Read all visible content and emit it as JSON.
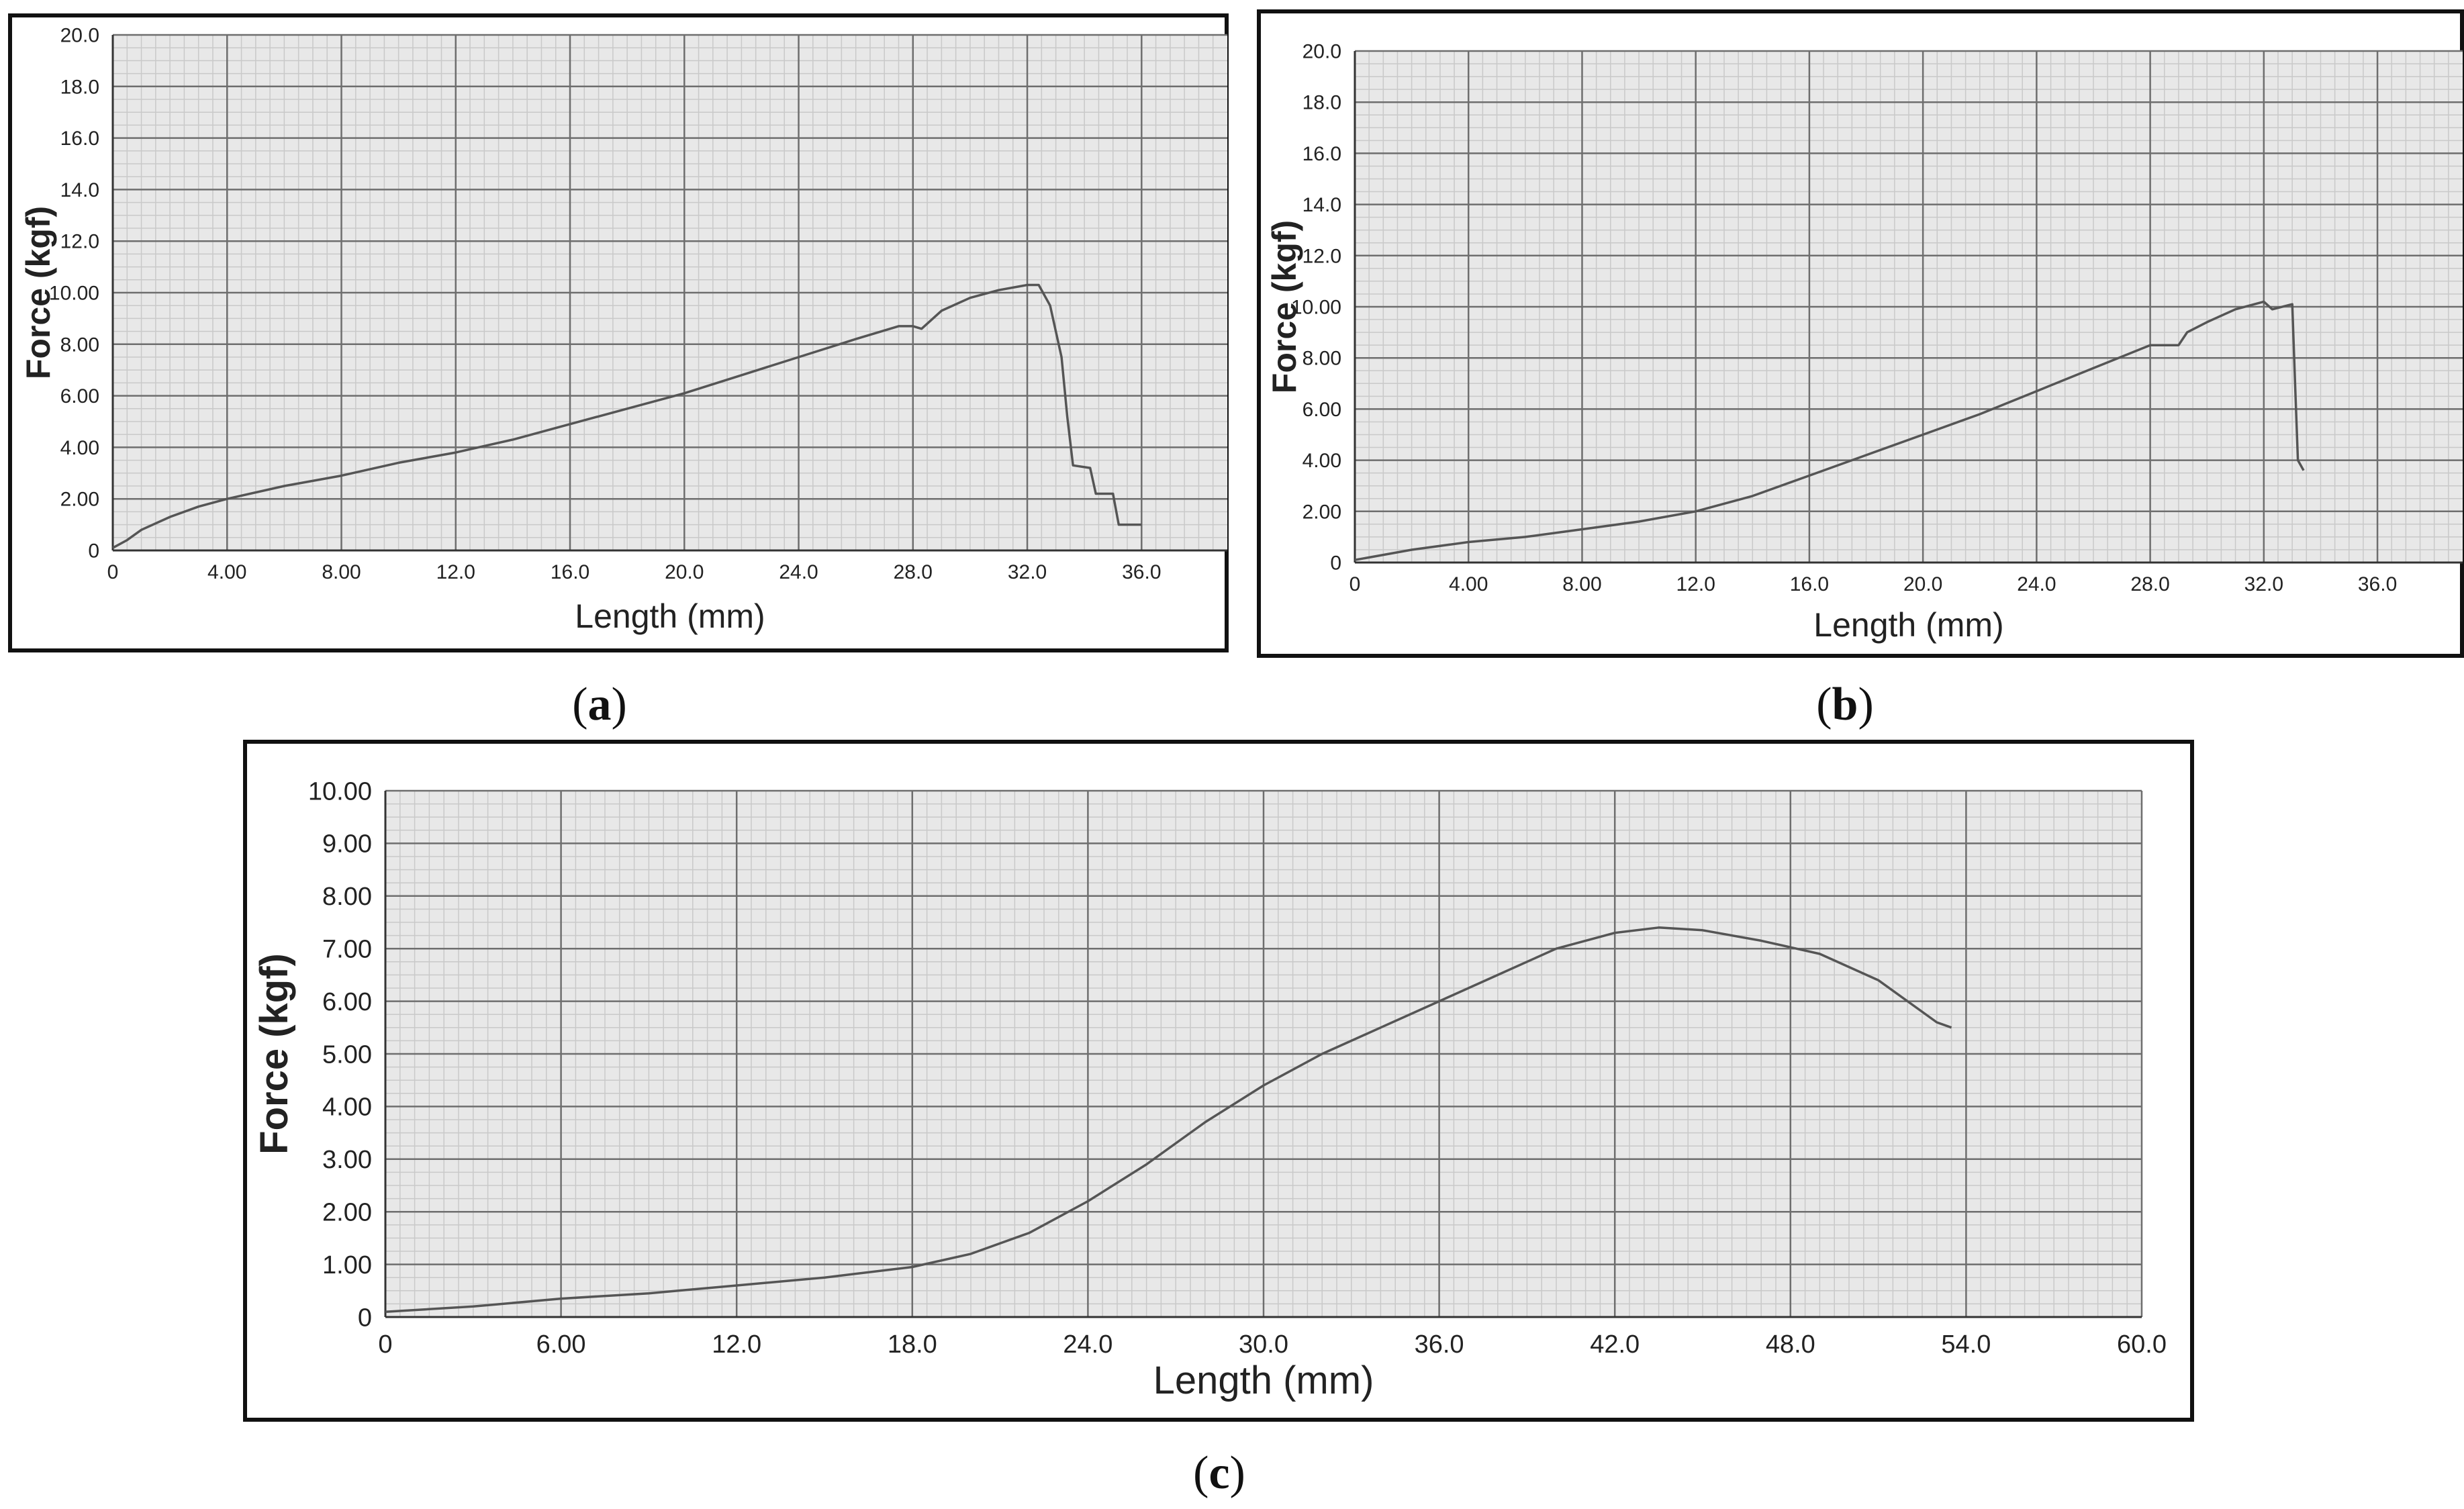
{
  "captions": {
    "a": "a",
    "b": "b",
    "c": "c"
  },
  "colors": {
    "plot_bg": "#e8e8e8",
    "minor_grid": "#c9c9c9",
    "major_grid": "#6e6e6e",
    "line": "#555555",
    "frame": "#111111"
  },
  "chart_data": [
    {
      "id": "a",
      "type": "line",
      "xlabel": "Length (mm)",
      "ylabel": "Force (kgf)",
      "xlim": [
        0,
        39.0
      ],
      "ylim": [
        0,
        20.0
      ],
      "xticks": [
        "0",
        "4.00",
        "8.00",
        "12.0",
        "16.0",
        "20.0",
        "24.0",
        "28.0",
        "32.0",
        "36.0"
      ],
      "yticks": [
        "0",
        "2.00",
        "4.00",
        "6.00",
        "8.00",
        "10.00",
        "12.0",
        "14.0",
        "16.0",
        "18.0",
        "20.0"
      ],
      "grid": true,
      "x": [
        0,
        0.5,
        1.0,
        2.0,
        3.0,
        4.0,
        6.0,
        8.0,
        10.0,
        12.0,
        14.0,
        16.0,
        18.0,
        20.0,
        22.0,
        24.0,
        26.0,
        27.5,
        28.0,
        28.3,
        29.0,
        30.0,
        31.0,
        32.0,
        32.4,
        32.8,
        33.2,
        33.4,
        33.6,
        34.2,
        34.4,
        35.0,
        35.2,
        36.0
      ],
      "y": [
        0.1,
        0.4,
        0.8,
        1.3,
        1.7,
        2.0,
        2.5,
        2.9,
        3.4,
        3.8,
        4.3,
        4.9,
        5.5,
        6.1,
        6.8,
        7.5,
        8.2,
        8.7,
        8.7,
        8.6,
        9.3,
        9.8,
        10.1,
        10.3,
        10.3,
        9.5,
        7.5,
        5.2,
        3.3,
        3.2,
        2.2,
        2.2,
        1.0,
        1.0
      ]
    },
    {
      "id": "b",
      "type": "line",
      "xlabel": "Length (mm)",
      "ylabel": "Force (kgf)",
      "xlim": [
        0,
        39.0
      ],
      "ylim": [
        0,
        20.0
      ],
      "xticks": [
        "0",
        "4.00",
        "8.00",
        "12.0",
        "16.0",
        "20.0",
        "24.0",
        "28.0",
        "32.0",
        "36.0"
      ],
      "yticks": [
        "0",
        "2.00",
        "4.00",
        "6.00",
        "8.00",
        "10.00",
        "12.0",
        "14.0",
        "16.0",
        "18.0",
        "20.0"
      ],
      "grid": true,
      "x": [
        0,
        1.0,
        2.0,
        4.0,
        6.0,
        8.0,
        10.0,
        12.0,
        14.0,
        16.0,
        18.0,
        20.0,
        22.0,
        24.0,
        26.0,
        28.0,
        29.0,
        29.3,
        30.0,
        31.0,
        32.0,
        32.3,
        33.0,
        33.1,
        33.2,
        33.4
      ],
      "y": [
        0.1,
        0.3,
        0.5,
        0.8,
        1.0,
        1.3,
        1.6,
        2.0,
        2.6,
        3.4,
        4.2,
        5.0,
        5.8,
        6.7,
        7.6,
        8.5,
        8.5,
        9.0,
        9.4,
        9.9,
        10.2,
        9.9,
        10.1,
        7.0,
        4.0,
        3.6
      ]
    },
    {
      "id": "c",
      "type": "line",
      "xlabel": "Length (mm)",
      "ylabel": "Force (kgf)",
      "xlim": [
        0,
        60.0
      ],
      "ylim": [
        0,
        10.0
      ],
      "xticks": [
        "0",
        "6.00",
        "12.0",
        "18.0",
        "24.0",
        "30.0",
        "36.0",
        "42.0",
        "48.0",
        "54.0",
        "60.0"
      ],
      "yticks": [
        "0",
        "1.00",
        "2.00",
        "3.00",
        "4.00",
        "5.00",
        "6.00",
        "7.00",
        "8.00",
        "9.00",
        "10.00"
      ],
      "grid": true,
      "x": [
        0,
        3.0,
        6.0,
        9.0,
        12.0,
        15.0,
        18.0,
        20.0,
        22.0,
        24.0,
        26.0,
        28.0,
        30.0,
        32.0,
        34.0,
        36.0,
        38.0,
        40.0,
        42.0,
        43.5,
        45.0,
        47.0,
        49.0,
        51.0,
        53.0,
        53.5
      ],
      "y": [
        0.1,
        0.2,
        0.35,
        0.45,
        0.6,
        0.75,
        0.95,
        1.2,
        1.6,
        2.2,
        2.9,
        3.7,
        4.4,
        5.0,
        5.5,
        6.0,
        6.5,
        7.0,
        7.3,
        7.4,
        7.35,
        7.15,
        6.9,
        6.4,
        5.6,
        5.5
      ]
    }
  ]
}
